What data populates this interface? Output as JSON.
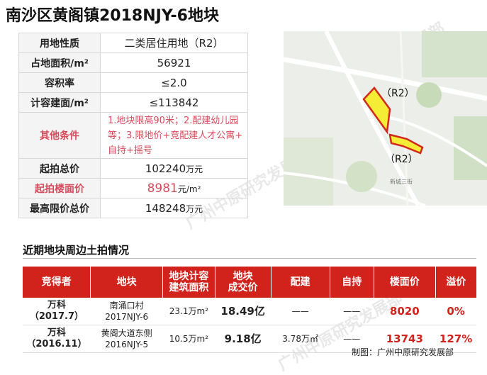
{
  "title": "南沙区黄阁镇2018NJY-6地块",
  "properties": [
    {
      "label": "用地性质",
      "value": "二类居住用地（R2）"
    },
    {
      "label": "占地面积/m²",
      "value": "56921"
    },
    {
      "label": "容积率",
      "value": "≤2.0"
    },
    {
      "label": "计容建面/m²",
      "value": "≤113842"
    },
    {
      "label": "其他条件",
      "lines": [
        "1.地块限高90米；2.配建幼儿园",
        "等；3.限地价+竞配建人才公寓+",
        "自持+摇号"
      ]
    },
    {
      "label": "起拍总价",
      "value": "102240",
      "unit": "万元"
    },
    {
      "label": "起拍楼面价",
      "value": "8981",
      "unit": "元/m²"
    },
    {
      "label": "最高限价总价",
      "value": "148248",
      "unit": "万元"
    }
  ],
  "map": {
    "plot1_label": "（R2）",
    "plot2_label": "（R2）",
    "road_label": "新城三街"
  },
  "section_title": "近期地块周边土拍情况",
  "nearby": {
    "headers": [
      [
        "竞得者"
      ],
      [
        "地块"
      ],
      [
        "地块计容",
        "建筑面积"
      ],
      [
        "地块",
        "成交价"
      ],
      [
        "配建"
      ],
      [
        "自持"
      ],
      [
        "楼面价"
      ],
      [
        "溢价"
      ]
    ],
    "rows": [
      {
        "bidder": "万科",
        "date": "（2017.7）",
        "plot": "南涌口村",
        "plot_code": "2017NJY-6",
        "area": "23.1万m²",
        "price": "18.49亿",
        "supporting": "——",
        "self_hold": "——",
        "floor_price": "8020",
        "premium": "0%"
      },
      {
        "bidder": "万科",
        "date": "（2016.11）",
        "plot": "黄阁大道东侧",
        "plot_code": "2016NJY-5",
        "area": "10.5万m²",
        "price": "9.18亿",
        "supporting": "3.78万㎡",
        "self_hold": "——",
        "floor_price": "13743",
        "premium": "127%"
      }
    ]
  },
  "footer": "制图：广州中原研究发展部",
  "watermark": "广州中原研究发展部"
}
